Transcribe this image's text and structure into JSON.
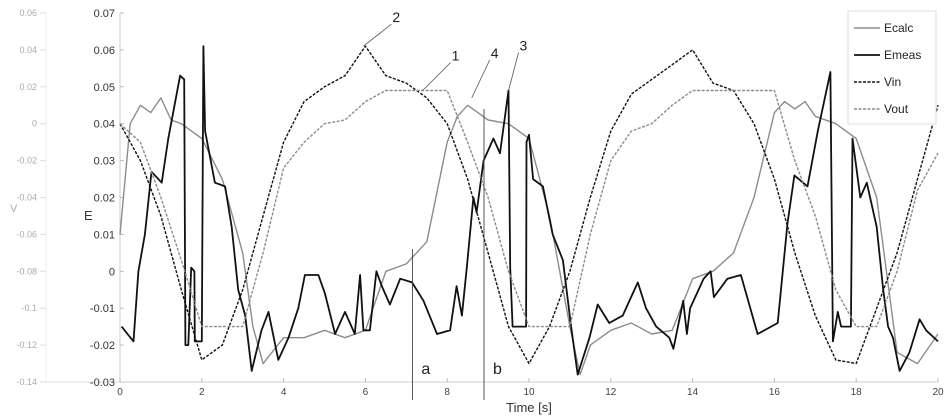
{
  "chart_data": {
    "type": "line",
    "xlabel": "Time [s]",
    "ylabel": "E",
    "ylabel_secondary": "V",
    "xlim": [
      0,
      20
    ],
    "ylim": [
      -0.03,
      0.07
    ],
    "ylim_secondary": [
      -0.14,
      0.06
    ],
    "x_ticks": [
      "0",
      "2",
      "4",
      "6",
      "8",
      "10",
      "12",
      "14",
      "16",
      "18",
      "20"
    ],
    "y_ticks": [
      "0.07",
      "0.06",
      "0.05",
      "0.04",
      "0.03",
      "0.02",
      "0.01",
      "0",
      "-0.01",
      "-0.02",
      "-0.03"
    ],
    "y_ticks_secondary": [
      "0.06",
      "0.04",
      "0.02",
      "0",
      "-0.02",
      "-0.04",
      "-0.06",
      "-0.08",
      "-0.1",
      "-0.12",
      "-0.14"
    ],
    "grid": false,
    "legend_position": "top-right",
    "series": [
      {
        "name": "Ecalc",
        "axis": "E",
        "color": "#8c8c8c",
        "style": "solid",
        "x": [
          0,
          0.25,
          0.5,
          0.75,
          1,
          1.25,
          1.5,
          2,
          2.5,
          3,
          3.25,
          3.5,
          4,
          4.5,
          5,
          5.5,
          6,
          6.5,
          7,
          7.5,
          8,
          8.25,
          8.5,
          8.75,
          9,
          9.5,
          10,
          10.5,
          11,
          11.25,
          11.5,
          12,
          12.5,
          13,
          13.5,
          14,
          14.5,
          15,
          15.5,
          16,
          16.25,
          16.5,
          16.75,
          17,
          17.5,
          18,
          18.5,
          19,
          19.5,
          20
        ],
        "y": [
          0.01,
          0.04,
          0.045,
          0.043,
          0.047,
          0.041,
          0.04,
          0.036,
          0.025,
          0.005,
          -0.015,
          -0.025,
          -0.018,
          -0.018,
          -0.016,
          -0.018,
          -0.016,
          0.0,
          0.002,
          0.008,
          0.035,
          0.042,
          0.045,
          0.043,
          0.041,
          0.04,
          0.036,
          0.015,
          -0.015,
          -0.028,
          -0.02,
          -0.016,
          -0.014,
          -0.017,
          -0.016,
          -0.002,
          0.0,
          0.005,
          0.02,
          0.043,
          0.046,
          0.044,
          0.046,
          0.042,
          0.04,
          0.036,
          0.02,
          -0.022,
          -0.025,
          -0.017
        ]
      },
      {
        "name": "Emeas",
        "axis": "E",
        "color": "#111111",
        "style": "solid",
        "x": [
          0.04,
          0.33,
          0.45,
          0.61,
          0.77,
          1.02,
          1.18,
          1.47,
          1.57,
          1.6,
          1.67,
          1.74,
          1.82,
          1.83,
          2.0,
          2.04,
          2.08,
          2.32,
          2.57,
          2.73,
          2.89,
          3.06,
          3.22,
          3.46,
          3.63,
          3.87,
          4.12,
          4.36,
          4.52,
          4.85,
          5.01,
          5.26,
          5.5,
          5.74,
          5.87,
          5.95,
          6.11,
          6.27,
          6.4,
          6.6,
          6.85,
          7.14,
          7.42,
          7.75,
          8.07,
          8.23,
          8.36,
          8.48,
          8.64,
          8.72,
          8.89,
          9.13,
          9.29,
          9.5,
          9.54,
          9.6,
          9.93,
          9.94,
          10.0,
          10.1,
          10.34,
          10.58,
          10.83,
          11.03,
          11.19,
          11.48,
          11.68,
          11.96,
          12.29,
          12.66,
          12.86,
          13.11,
          13.43,
          13.53,
          13.77,
          13.86,
          13.94,
          14.27,
          14.44,
          14.52,
          14.85,
          15.18,
          15.59,
          16.08,
          16.32,
          16.49,
          16.81,
          17.06,
          17.37,
          17.43,
          17.55,
          17.63,
          17.87,
          17.91,
          18.1,
          18.26,
          18.5,
          18.66,
          18.78,
          18.9,
          19.06,
          19.3,
          19.55,
          19.71,
          20.0
        ],
        "y": [
          -0.015,
          -0.019,
          0.0,
          0.01,
          0.027,
          0.024,
          0.036,
          0.053,
          0.052,
          -0.02,
          -0.02,
          0.001,
          0.0,
          -0.019,
          -0.019,
          0.061,
          0.038,
          0.024,
          0.023,
          0.012,
          -0.005,
          -0.012,
          -0.027,
          -0.016,
          -0.011,
          -0.024,
          -0.018,
          -0.01,
          -0.001,
          -0.001,
          -0.006,
          -0.017,
          -0.011,
          -0.017,
          -0.001,
          -0.016,
          -0.016,
          0.0,
          -0.004,
          -0.009,
          -0.002,
          -0.003,
          -0.008,
          -0.017,
          -0.016,
          -0.004,
          -0.012,
          0.001,
          0.02,
          0.016,
          0.03,
          0.036,
          0.032,
          0.049,
          0.001,
          -0.015,
          -0.015,
          0.035,
          0.037,
          0.025,
          0.023,
          0.01,
          0.003,
          -0.015,
          -0.028,
          -0.018,
          -0.009,
          -0.014,
          -0.012,
          -0.003,
          -0.01,
          -0.015,
          -0.018,
          -0.021,
          -0.008,
          -0.017,
          -0.01,
          -0.002,
          0.0,
          -0.007,
          -0.002,
          -0.001,
          -0.017,
          -0.014,
          0.013,
          0.026,
          0.023,
          0.038,
          0.054,
          -0.019,
          -0.011,
          -0.015,
          -0.015,
          0.036,
          0.02,
          0.024,
          0.012,
          -0.005,
          -0.015,
          -0.018,
          -0.027,
          -0.022,
          -0.013,
          -0.016,
          -0.019
        ]
      },
      {
        "name": "Vin",
        "axis": "V",
        "color": "#111111",
        "style": "dashed",
        "x": [
          0,
          0.5,
          1,
          1.5,
          2,
          2.5,
          3,
          3.5,
          4,
          4.5,
          5,
          5.5,
          6,
          6.5,
          7,
          7.5,
          8,
          8.5,
          9,
          9.5,
          10,
          10.5,
          11,
          11.5,
          12,
          12.5,
          13,
          13.5,
          14,
          14.5,
          15,
          15.5,
          16,
          16.5,
          17,
          17.5,
          18,
          18.5,
          19,
          19.5,
          20
        ],
        "y": [
          0,
          -0.02,
          -0.05,
          -0.09,
          -0.128,
          -0.12,
          -0.09,
          -0.05,
          -0.01,
          0.012,
          0.02,
          0.026,
          0.042,
          0.026,
          0.022,
          0.014,
          0,
          -0.03,
          -0.07,
          -0.11,
          -0.13,
          -0.11,
          -0.08,
          -0.04,
          -0.004,
          0.016,
          0.024,
          0.032,
          0.04,
          0.022,
          0.018,
          0,
          -0.03,
          -0.07,
          -0.104,
          -0.128,
          -0.13,
          -0.1,
          -0.07,
          -0.03,
          0.01
        ]
      },
      {
        "name": "Vout",
        "axis": "V",
        "color": "#8c8c8c",
        "style": "dashed",
        "x": [
          0,
          0.5,
          1,
          1.5,
          2,
          2.5,
          3,
          3.5,
          4,
          4.5,
          5,
          5.5,
          6,
          6.5,
          7,
          7.5,
          8,
          8.5,
          9,
          9.5,
          10,
          10.5,
          11,
          11.5,
          12,
          12.5,
          13,
          13.5,
          14,
          14.5,
          15,
          15.5,
          16,
          16.5,
          17,
          17.5,
          18,
          18.5,
          19,
          19.5,
          20
        ],
        "y": [
          0,
          -0.01,
          -0.04,
          -0.074,
          -0.11,
          -0.11,
          -0.11,
          -0.07,
          -0.024,
          -0.01,
          0,
          0.002,
          0.012,
          0.018,
          0.018,
          0.018,
          0.018,
          -0.01,
          -0.04,
          -0.08,
          -0.11,
          -0.11,
          -0.11,
          -0.06,
          -0.02,
          -0.004,
          0,
          0.01,
          0.018,
          0.018,
          0.018,
          0.018,
          0.018,
          -0.02,
          -0.05,
          -0.09,
          -0.11,
          -0.11,
          -0.08,
          -0.036,
          -0.016
        ]
      }
    ],
    "annotations": {
      "points": [
        {
          "label": "2",
          "t": 5.95,
          "e": 0.061
        },
        {
          "label": "1",
          "t": 7.4,
          "e": 0.049
        },
        {
          "label": "4",
          "t": 8.6,
          "e": 0.047
        },
        {
          "label": "3",
          "t": 9.5,
          "e": 0.049
        }
      ],
      "markers": [
        {
          "label": "a",
          "t": 7.15
        },
        {
          "label": "b",
          "t": 8.9
        }
      ]
    }
  }
}
